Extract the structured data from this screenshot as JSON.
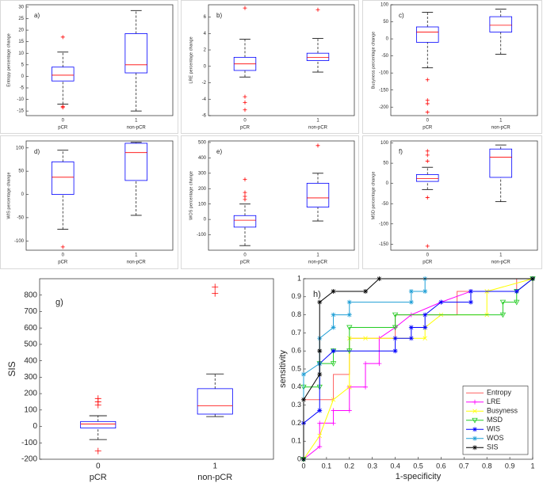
{
  "chart_data": [
    {
      "type": "box",
      "panel": "a)",
      "ylabel": "Entropy percentage change",
      "categories": [
        "0",
        "1"
      ],
      "group_labels": [
        "pCR",
        "non-pCR"
      ],
      "ylim": [
        -17,
        31
      ],
      "yticks": [
        -15,
        -10,
        -5,
        0,
        5,
        10,
        15,
        20,
        25,
        30
      ],
      "box_color": "#0000ff",
      "median_color": "#ff0000",
      "flier_color": "#ff0000",
      "boxes": [
        {
          "whislo": -12,
          "q1": -2,
          "med": 0.5,
          "q3": 4,
          "whishi": 10.5,
          "fliers": [
            17,
            -13,
            -13.5
          ]
        },
        {
          "whislo": -15,
          "q1": 1.5,
          "med": 5,
          "q3": 18.5,
          "whishi": 28.5,
          "fliers": []
        }
      ]
    },
    {
      "type": "box",
      "panel": "b)",
      "ylabel": "LRE percentage change",
      "categories": [
        "0",
        "1"
      ],
      "group_labels": [
        "pCR",
        "non-pCR"
      ],
      "ylim": [
        -6,
        7.5
      ],
      "yticks": [
        -6,
        -4,
        -2,
        0,
        2,
        4,
        6
      ],
      "box_color": "#0000ff",
      "median_color": "#ff0000",
      "flier_color": "#ff0000",
      "boxes": [
        {
          "whislo": -1.3,
          "q1": -0.5,
          "med": 0.3,
          "q3": 1.1,
          "whishi": 3.3,
          "fliers": [
            7.1,
            -3.7,
            -4.4,
            -5.3
          ]
        },
        {
          "whislo": -0.7,
          "q1": 0.7,
          "med": 1.1,
          "q3": 1.6,
          "whishi": 3.4,
          "fliers": [
            6.9
          ]
        }
      ]
    },
    {
      "type": "box",
      "panel": "c)",
      "ylabel": "Busyness percentage change",
      "categories": [
        "0",
        "1"
      ],
      "group_labels": [
        "pCR",
        "non-pCR"
      ],
      "ylim": [
        -225,
        100
      ],
      "yticks": [
        -200,
        -150,
        -100,
        -50,
        0,
        50,
        100
      ],
      "box_color": "#0000ff",
      "median_color": "#ff0000",
      "flier_color": "#ff0000",
      "boxes": [
        {
          "whislo": -85,
          "q1": -10,
          "med": 20,
          "q3": 35,
          "whishi": 78,
          "fliers": [
            -120,
            -180,
            -190,
            -215
          ]
        },
        {
          "whislo": -45,
          "q1": 20,
          "med": 40,
          "q3": 65,
          "whishi": 87,
          "fliers": []
        }
      ]
    },
    {
      "type": "box",
      "panel": "d)",
      "ylabel": "WIS percentage change",
      "categories": [
        "0",
        "1"
      ],
      "group_labels": [
        "pCR",
        "non-pCR"
      ],
      "ylim": [
        -120,
        115
      ],
      "yticks": [
        -100,
        -50,
        0,
        50,
        100
      ],
      "box_color": "#0000ff",
      "median_color": "#ff0000",
      "flier_color": "#ff0000",
      "boxes": [
        {
          "whislo": -75,
          "q1": 0,
          "med": 37,
          "q3": 70,
          "whishi": 95,
          "fliers": [
            -113
          ]
        },
        {
          "whislo": -45,
          "q1": 30,
          "med": 90,
          "q3": 110,
          "whishi": 112,
          "fliers": []
        }
      ]
    },
    {
      "type": "box",
      "panel": "e)",
      "ylabel": "WOS percentage change",
      "categories": [
        "0",
        "1"
      ],
      "group_labels": [
        "pCR",
        "non-pCR"
      ],
      "ylim": [
        -200,
        510
      ],
      "yticks": [
        -100,
        0,
        100,
        200,
        300,
        400,
        500
      ],
      "box_color": "#0000ff",
      "median_color": "#ff0000",
      "flier_color": "#ff0000",
      "boxes": [
        {
          "whislo": -170,
          "q1": -50,
          "med": -5,
          "q3": 25,
          "whishi": 100,
          "fliers": [
            130,
            150,
            175,
            260
          ]
        },
        {
          "whislo": -10,
          "q1": 80,
          "med": 140,
          "q3": 235,
          "whishi": 300,
          "fliers": [
            480
          ]
        }
      ]
    },
    {
      "type": "box",
      "panel": "f)",
      "ylabel": "MSD percentage change",
      "categories": [
        "0",
        "1"
      ],
      "group_labels": [
        "pCR",
        "non-pCR"
      ],
      "ylim": [
        -165,
        105
      ],
      "yticks": [
        -150,
        -100,
        -50,
        0,
        50,
        100
      ],
      "box_color": "#0000ff",
      "median_color": "#ff0000",
      "flier_color": "#ff0000",
      "boxes": [
        {
          "whislo": -15,
          "q1": 5,
          "med": 12,
          "q3": 22,
          "whishi": 40,
          "fliers": [
            80,
            70,
            55,
            -35,
            -155
          ]
        },
        {
          "whislo": -45,
          "q1": 15,
          "med": 65,
          "q3": 85,
          "whishi": 95,
          "fliers": []
        }
      ]
    },
    {
      "type": "box",
      "panel": "g)",
      "ylabel": "SIS",
      "categories": [
        "0",
        "1"
      ],
      "group_labels": [
        "pCR",
        "non-pCR"
      ],
      "ylim": [
        -200,
        900
      ],
      "yticks": [
        -200,
        -100,
        0,
        100,
        200,
        300,
        400,
        500,
        600,
        700,
        800
      ],
      "box_color": "#0000ff",
      "median_color": "#ff0000",
      "flier_color": "#ff0000",
      "boxes": [
        {
          "whislo": -80,
          "q1": -10,
          "med": 15,
          "q3": 30,
          "whishi": 65,
          "fliers": [
            170,
            150,
            130,
            -150
          ]
        },
        {
          "whislo": 60,
          "q1": 75,
          "med": 125,
          "q3": 230,
          "whishi": 320,
          "fliers": [
            850,
            810
          ]
        }
      ]
    },
    {
      "type": "line",
      "panel": "h)",
      "xlabel": "1-specificity",
      "ylabel": "sensitivity",
      "xlim": [
        0,
        1
      ],
      "ylim": [
        0,
        1
      ],
      "xticks": [
        0,
        0.1,
        0.2,
        0.3,
        0.4,
        0.5,
        0.6,
        0.7,
        0.8,
        0.9,
        1
      ],
      "yticks": [
        0,
        0.1,
        0.2,
        0.3,
        0.4,
        0.5,
        0.6,
        0.7,
        0.8,
        0.9,
        1
      ],
      "legend": "lower right",
      "series": [
        {
          "name": "Entropy",
          "color": "#ff6060",
          "marker": "none",
          "x": [
            0,
            0,
            0.13,
            0.13,
            0.2,
            0.2,
            0.4,
            0.4,
            0.67,
            0.67,
            0.93,
            0.93,
            1
          ],
          "values": [
            0,
            0.33,
            0.33,
            0.47,
            0.47,
            0.67,
            0.67,
            0.8,
            0.8,
            0.93,
            0.93,
            1,
            1
          ]
        },
        {
          "name": "LRE",
          "color": "#ff00ff",
          "marker": "+",
          "x": [
            0,
            0.07,
            0.07,
            0.13,
            0.13,
            0.2,
            0.2,
            0.27,
            0.27,
            0.33,
            0.33,
            0.4,
            0.47,
            0.6,
            0.73,
            0.93,
            1
          ],
          "values": [
            0,
            0.07,
            0.2,
            0.2,
            0.27,
            0.27,
            0.4,
            0.4,
            0.53,
            0.53,
            0.67,
            0.73,
            0.8,
            0.87,
            0.93,
            0.93,
            1
          ]
        },
        {
          "name": "Busyness",
          "color": "#ffff00",
          "marker": "x",
          "x": [
            0,
            0.07,
            0.13,
            0.2,
            0.2,
            0.27,
            0.53,
            0.53,
            0.6,
            0.8,
            0.8,
            1
          ],
          "values": [
            0,
            0.13,
            0.33,
            0.4,
            0.67,
            0.67,
            0.67,
            0.73,
            0.8,
            0.8,
            0.93,
            1
          ]
        },
        {
          "name": "MSD",
          "color": "#22cc22",
          "marker": "v",
          "x": [
            0,
            0,
            0.07,
            0.07,
            0.13,
            0.13,
            0.2,
            0.2,
            0.4,
            0.4,
            0.87,
            0.87,
            0.93,
            0.93,
            1
          ],
          "values": [
            0,
            0.4,
            0.4,
            0.53,
            0.53,
            0.6,
            0.6,
            0.73,
            0.73,
            0.8,
            0.8,
            0.87,
            0.87,
            0.93,
            1
          ]
        },
        {
          "name": "WIS",
          "color": "#0000ff",
          "marker": "*",
          "x": [
            0,
            0,
            0.07,
            0.07,
            0.13,
            0.4,
            0.4,
            0.47,
            0.47,
            0.53,
            0.53,
            0.6,
            0.73,
            0.73,
            0.93,
            1
          ],
          "values": [
            0,
            0.2,
            0.27,
            0.53,
            0.6,
            0.6,
            0.67,
            0.67,
            0.73,
            0.73,
            0.8,
            0.87,
            0.87,
            0.93,
            0.93,
            1
          ]
        },
        {
          "name": "WOS",
          "color": "#1f9fd6",
          "marker": "*",
          "x": [
            0,
            0,
            0.07,
            0.07,
            0.13,
            0.13,
            0.2,
            0.2,
            0.47,
            0.47,
            0.53,
            0.53,
            1
          ],
          "values": [
            0,
            0.47,
            0.53,
            0.67,
            0.73,
            0.8,
            0.8,
            0.87,
            0.87,
            0.93,
            0.93,
            1,
            1
          ]
        },
        {
          "name": "SIS",
          "color": "#000000",
          "marker": "*",
          "x": [
            0,
            0,
            0.07,
            0.07,
            0.07,
            0.13,
            0.27,
            0.33,
            1
          ],
          "values": [
            0,
            0.33,
            0.47,
            0.6,
            0.87,
            0.93,
            0.93,
            1,
            1
          ]
        }
      ]
    }
  ]
}
